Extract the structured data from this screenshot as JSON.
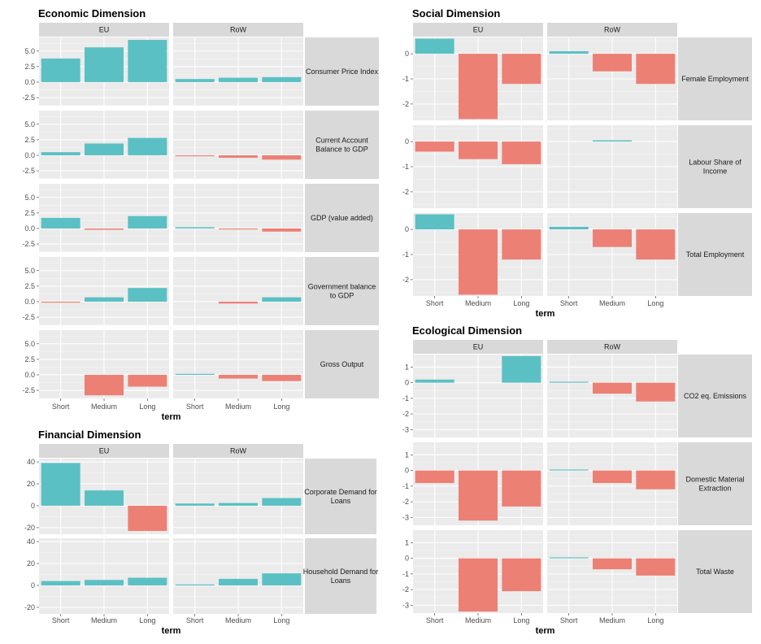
{
  "chart_data": [
    {
      "type": "bar",
      "title": "Economic Dimension",
      "xlabel": "term",
      "ylabel": "",
      "facet_cols": [
        "EU",
        "RoW"
      ],
      "facet_rows": [
        "Consumer Price Index",
        "Current Account Balance to GDP",
        "GDP (value added)",
        "Government balance to GDP",
        "Gross Output"
      ],
      "categories": [
        "Short",
        "Medium",
        "Long"
      ],
      "yticks": [
        -2.5,
        0.0,
        2.5,
        5.0
      ],
      "ytick_labels": [
        "-2.5",
        "0.0",
        "2.5",
        "5.0"
      ],
      "ylim": [
        -3.8,
        7.2
      ],
      "colors": {
        "positive": "#5bc0c4",
        "negative": "#ec8075"
      },
      "values": [
        [
          [
            3.8,
            5.6,
            6.8
          ],
          [
            0.5,
            0.7,
            0.8
          ]
        ],
        [
          [
            0.5,
            1.9,
            2.8
          ],
          [
            -0.05,
            -0.4,
            -0.7
          ]
        ],
        [
          [
            1.7,
            -0.2,
            2.0
          ],
          [
            0.2,
            -0.1,
            -0.5
          ]
        ],
        [
          [
            -0.05,
            0.7,
            2.2
          ],
          [
            0.0,
            -0.3,
            0.7
          ]
        ],
        [
          [
            0.0,
            -3.3,
            -1.9
          ],
          [
            0.1,
            -0.6,
            -1.0
          ]
        ]
      ]
    },
    {
      "type": "bar",
      "title": "Financial Dimension",
      "xlabel": "term",
      "ylabel": "",
      "facet_cols": [
        "EU",
        "RoW"
      ],
      "facet_rows": [
        "Corporate Demand for Loans",
        "Household Demand for Loans"
      ],
      "categories": [
        "Short",
        "Medium",
        "Long"
      ],
      "yticks": [
        -20,
        0,
        20,
        40
      ],
      "ytick_labels": [
        "-20",
        "0",
        "20",
        "40"
      ],
      "ylim": [
        -26,
        43
      ],
      "colors": {
        "positive": "#5bc0c4",
        "negative": "#ec8075"
      },
      "values": [
        [
          [
            39,
            14,
            -23
          ],
          [
            2,
            2.5,
            7
          ]
        ],
        [
          [
            4,
            5,
            7
          ],
          [
            0.5,
            6,
            11
          ]
        ]
      ]
    },
    {
      "type": "bar",
      "title": "Social Dimension",
      "xlabel": "term",
      "ylabel": "",
      "facet_cols": [
        "EU",
        "RoW"
      ],
      "facet_rows": [
        "Female Employment",
        "Labour Share of Income",
        "Total Employment"
      ],
      "categories": [
        "Short",
        "Medium",
        "Long"
      ],
      "yticks": [
        -2,
        -1,
        0
      ],
      "ytick_labels": [
        "-2",
        "-1",
        "0"
      ],
      "ylim": [
        -2.65,
        0.65
      ],
      "colors": {
        "positive": "#5bc0c4",
        "negative": "#ec8075"
      },
      "values": [
        [
          [
            0.6,
            -2.6,
            -1.2
          ],
          [
            0.1,
            -0.7,
            -1.2
          ]
        ],
        [
          [
            -0.4,
            -0.7,
            -0.9
          ],
          [
            0.0,
            0.05,
            0.0
          ]
        ],
        [
          [
            0.6,
            -2.6,
            -1.2
          ],
          [
            0.1,
            -0.7,
            -1.2
          ]
        ]
      ]
    },
    {
      "type": "bar",
      "title": "Ecological Dimension",
      "xlabel": "term",
      "ylabel": "",
      "facet_cols": [
        "EU",
        "RoW"
      ],
      "facet_rows": [
        "CO2 eq. Emissions",
        "Domestic Material Extraction",
        "Total Waste"
      ],
      "categories": [
        "Short",
        "Medium",
        "Long"
      ],
      "yticks": [
        -3,
        -2,
        -1,
        0,
        1
      ],
      "ytick_labels": [
        "-3",
        "-2",
        "-1",
        "0",
        "1"
      ],
      "ylim": [
        -3.5,
        1.8
      ],
      "colors": {
        "positive": "#5bc0c4",
        "negative": "#ec8075"
      },
      "values": [
        [
          [
            0.2,
            0.0,
            1.7
          ],
          [
            0.05,
            -0.7,
            -1.2
          ]
        ],
        [
          [
            -0.8,
            -3.2,
            -2.3
          ],
          [
            0.05,
            -0.8,
            -1.2
          ]
        ],
        [
          [
            0.0,
            -3.4,
            -2.1
          ],
          [
            0.05,
            -0.7,
            -1.1
          ]
        ]
      ]
    }
  ]
}
